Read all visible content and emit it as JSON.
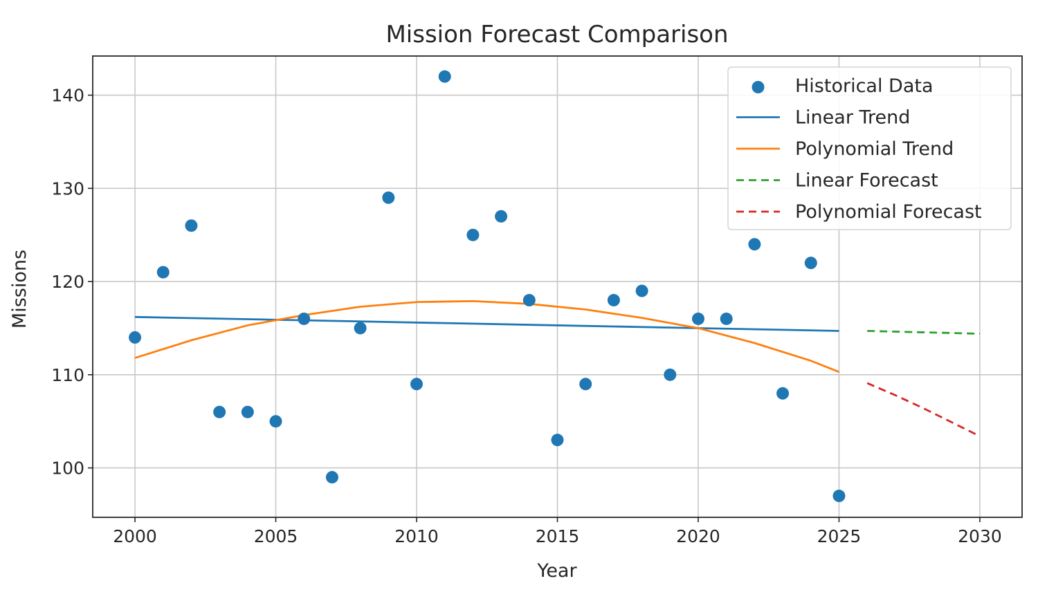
{
  "chart_data": {
    "type": "line",
    "title": "Mission Forecast Comparison",
    "xlabel": "Year",
    "ylabel": "Missions",
    "xlim": [
      1998.5,
      2031.5
    ],
    "ylim": [
      94.7,
      144.2
    ],
    "xticks": [
      2000,
      2005,
      2010,
      2015,
      2020,
      2025,
      2030
    ],
    "yticks": [
      100,
      110,
      120,
      130,
      140
    ],
    "grid": true,
    "legend_position": "top-right",
    "colors": {
      "historical": "#1f77b4",
      "linear_trend": "#1f77b4",
      "poly_trend": "#ff7f0e",
      "linear_forecast": "#2ca02c",
      "poly_forecast": "#d62728"
    },
    "series": [
      {
        "name": "Historical Data",
        "kind": "scatter",
        "x": [
          2000,
          2001,
          2002,
          2003,
          2004,
          2005,
          2006,
          2007,
          2008,
          2009,
          2010,
          2011,
          2012,
          2013,
          2014,
          2015,
          2016,
          2017,
          2018,
          2019,
          2020,
          2021,
          2022,
          2023,
          2024,
          2025
        ],
        "y": [
          114,
          121,
          126,
          106,
          106,
          105,
          116,
          99,
          115,
          129,
          109,
          142,
          125,
          127,
          118,
          103,
          109,
          118,
          119,
          110,
          116,
          116,
          124,
          108,
          122,
          97
        ]
      },
      {
        "name": "Linear Trend",
        "kind": "line",
        "style": "solid",
        "x": [
          2000,
          2025
        ],
        "y": [
          116.2,
          114.7
        ]
      },
      {
        "name": "Polynomial Trend",
        "kind": "line",
        "style": "solid",
        "x": [
          2000,
          2002,
          2004,
          2006,
          2008,
          2010,
          2012,
          2014,
          2016,
          2018,
          2020,
          2022,
          2024,
          2025
        ],
        "y": [
          111.8,
          113.7,
          115.3,
          116.4,
          117.3,
          117.8,
          117.9,
          117.6,
          117.0,
          116.1,
          115.0,
          113.4,
          111.5,
          110.3
        ]
      },
      {
        "name": "Linear Forecast",
        "kind": "line",
        "style": "dashed",
        "x": [
          2026,
          2030
        ],
        "y": [
          114.7,
          114.4
        ]
      },
      {
        "name": "Polynomial Forecast",
        "kind": "line",
        "style": "dashed",
        "x": [
          2026,
          2027,
          2028,
          2029,
          2030
        ],
        "y": [
          109.1,
          107.8,
          106.4,
          104.9,
          103.4
        ]
      }
    ]
  }
}
